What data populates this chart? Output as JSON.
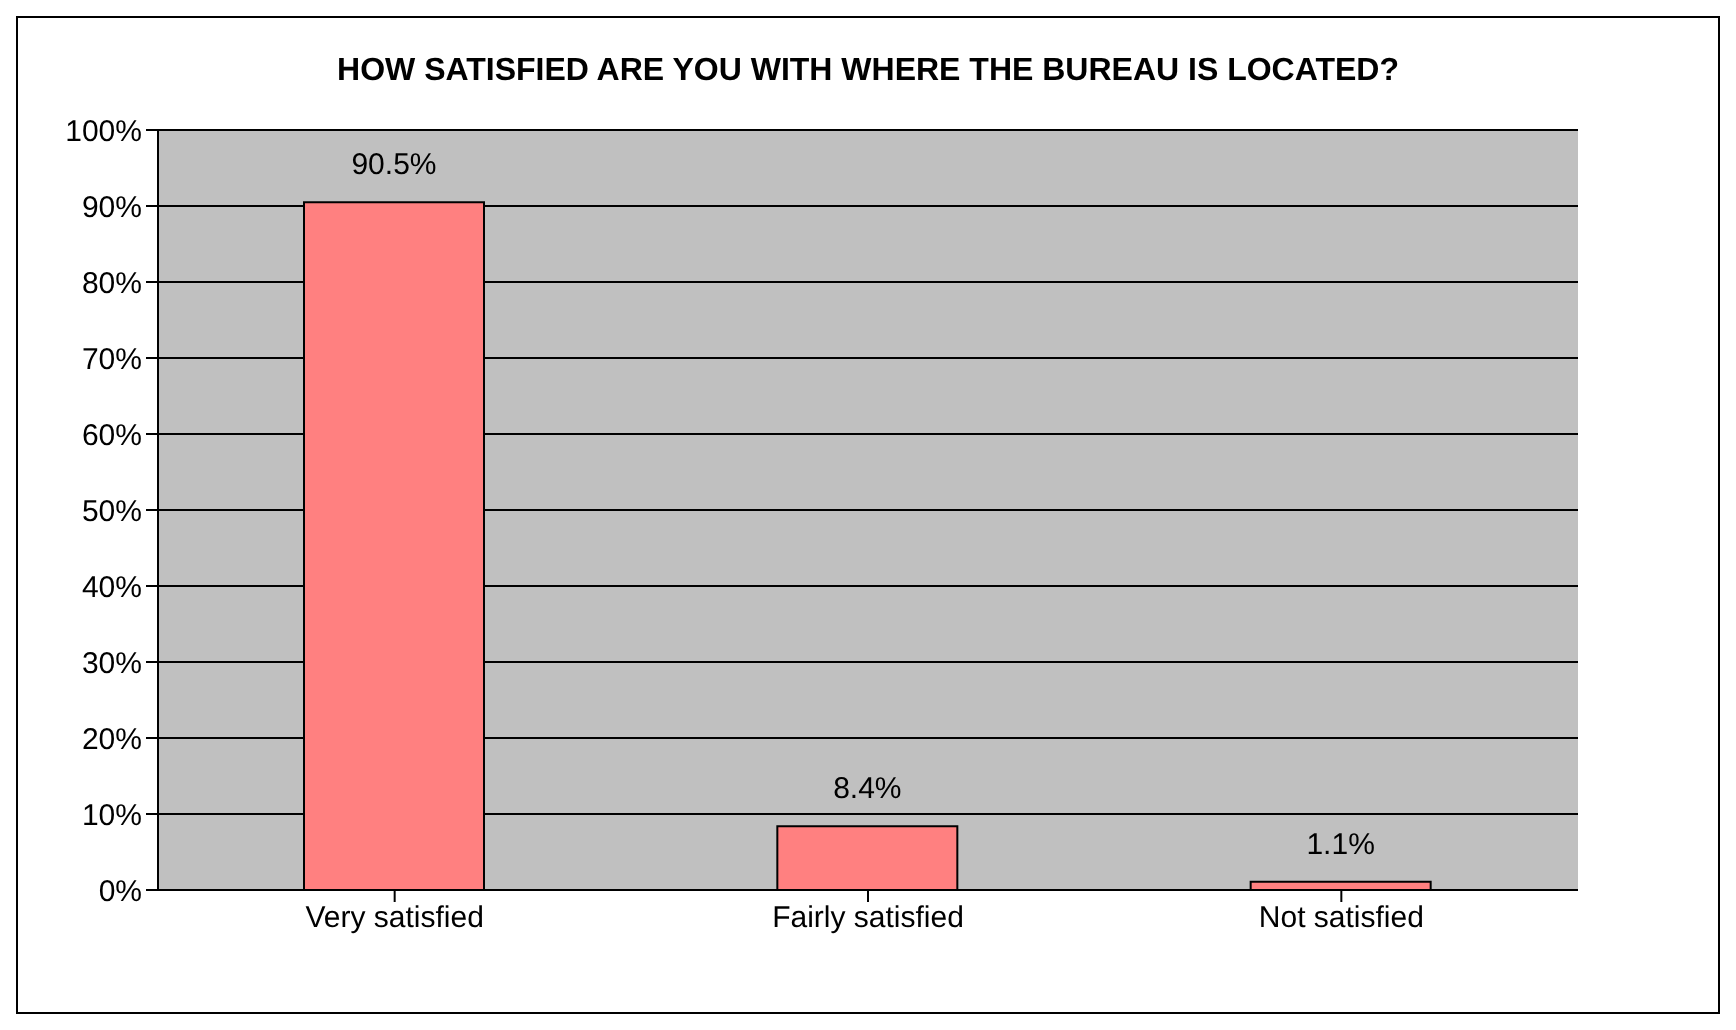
{
  "chart_data": {
    "type": "bar",
    "title": "HOW SATISFIED ARE YOU WITH WHERE THE BUREAU IS LOCATED?",
    "categories": [
      "Very satisfied",
      "Fairly satisfied",
      "Not satisfied"
    ],
    "values": [
      90.5,
      8.4,
      1.1
    ],
    "color": "#ff8080",
    "value_labels": [
      "90.5%",
      "8.4%",
      "1.1%"
    ],
    "ylim": [
      0,
      100
    ],
    "yticks": [
      {
        "value": 0,
        "label": "0%"
      },
      {
        "value": 10,
        "label": "10%"
      },
      {
        "value": 20,
        "label": "20%"
      },
      {
        "value": 30,
        "label": "30%"
      },
      {
        "value": 40,
        "label": "40%"
      },
      {
        "value": 50,
        "label": "50%"
      },
      {
        "value": 60,
        "label": "60%"
      },
      {
        "value": 70,
        "label": "70%"
      },
      {
        "value": 80,
        "label": "80%"
      },
      {
        "value": 90,
        "label": "90%"
      },
      {
        "value": 100,
        "label": "100%"
      }
    ],
    "grid": "y",
    "legend": false
  }
}
